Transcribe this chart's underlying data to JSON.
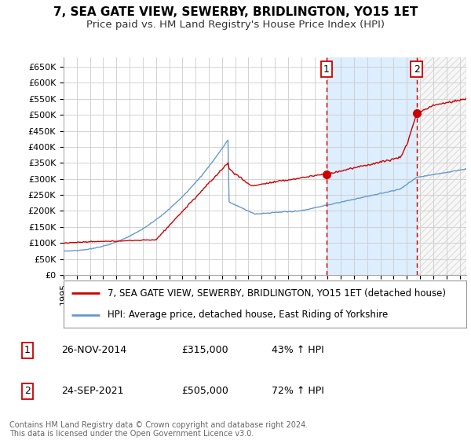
{
  "title": "7, SEA GATE VIEW, SEWERBY, BRIDLINGTON, YO15 1ET",
  "subtitle": "Price paid vs. HM Land Registry's House Price Index (HPI)",
  "ylabel_ticks": [
    "£0",
    "£50K",
    "£100K",
    "£150K",
    "£200K",
    "£250K",
    "£300K",
    "£350K",
    "£400K",
    "£450K",
    "£500K",
    "£550K",
    "£600K",
    "£650K"
  ],
  "ytick_vals": [
    0,
    50000,
    100000,
    150000,
    200000,
    250000,
    300000,
    350000,
    400000,
    450000,
    500000,
    550000,
    600000,
    650000
  ],
  "ylim": [
    0,
    680000
  ],
  "xlim_start": 1995.0,
  "xlim_end": 2025.5,
  "sale1_x": 2014.92,
  "sale1_y": 315000,
  "sale1_label": "1",
  "sale2_x": 2021.73,
  "sale2_y": 505000,
  "sale2_label": "2",
  "sale_color": "#cc0000",
  "hpi_color": "#6699cc",
  "vline_color": "#cc0000",
  "grid_color": "#cccccc",
  "shade_color": "#ddeeff",
  "background_color": "#ffffff",
  "legend_line1": "7, SEA GATE VIEW, SEWERBY, BRIDLINGTON, YO15 1ET (detached house)",
  "legend_line2": "HPI: Average price, detached house, East Riding of Yorkshire",
  "table_row1": [
    "1",
    "26-NOV-2014",
    "£315,000",
    "43% ↑ HPI"
  ],
  "table_row2": [
    "2",
    "24-SEP-2021",
    "£505,000",
    "72% ↑ HPI"
  ],
  "footer": "Contains HM Land Registry data © Crown copyright and database right 2024.\nThis data is licensed under the Open Government Licence v3.0.",
  "title_fontsize": 11,
  "subtitle_fontsize": 9.5,
  "tick_fontsize": 8,
  "legend_fontsize": 8.5,
  "footer_fontsize": 7
}
